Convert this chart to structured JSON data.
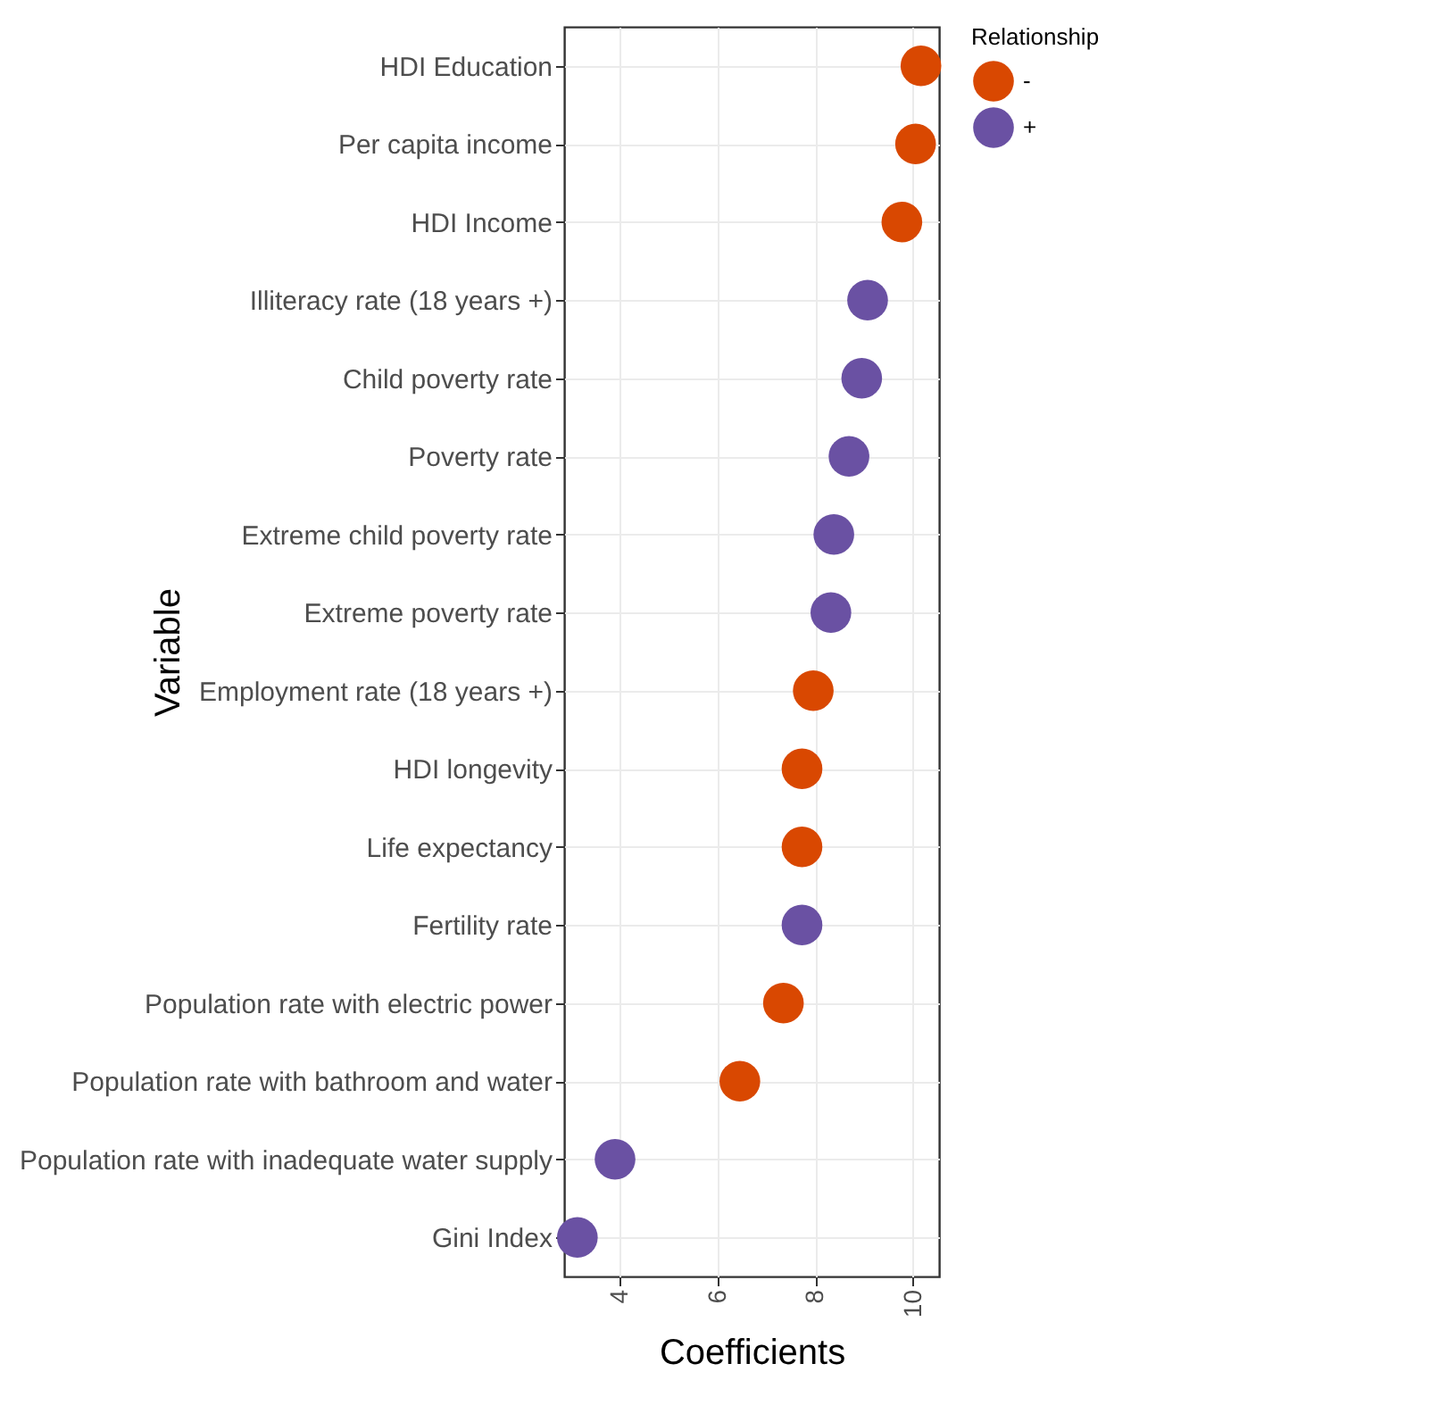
{
  "chart_data": {
    "type": "scatter",
    "xlabel": "Coefficients",
    "ylabel": "Variable",
    "legend_title": "Relationship",
    "legend": "right",
    "grid": true,
    "marker": "circle",
    "orientation": "horizontal",
    "categories": [
      "HDI Education",
      "Per capita income",
      "HDI Income",
      "Illiteracy rate (18 years +)",
      "Child poverty rate",
      "Poverty rate",
      "Extreme child poverty rate",
      "Extreme poverty rate",
      "Employment rate (18 years +)",
      "HDI longevity",
      "Life expectancy",
      "Fertility rate",
      "Population rate with electric power",
      "Population rate with bathroom and water",
      "Population rate with inadequate water supply",
      "Gini Index"
    ],
    "series": [
      {
        "name": "-",
        "color": "#d94801",
        "values": [
          10.16,
          10.05,
          9.77,
          null,
          null,
          null,
          null,
          null,
          7.96,
          7.73,
          7.73,
          null,
          7.35,
          6.46,
          null,
          null
        ]
      },
      {
        "name": "+",
        "color": "#6a51a3",
        "values": [
          null,
          null,
          null,
          9.07,
          8.95,
          8.69,
          8.38,
          8.32,
          null,
          null,
          null,
          7.73,
          null,
          null,
          3.91,
          3.14
        ]
      }
    ],
    "xlim": [
      2.87,
      10.53
    ],
    "xticks": [
      4,
      6,
      8,
      10
    ]
  }
}
